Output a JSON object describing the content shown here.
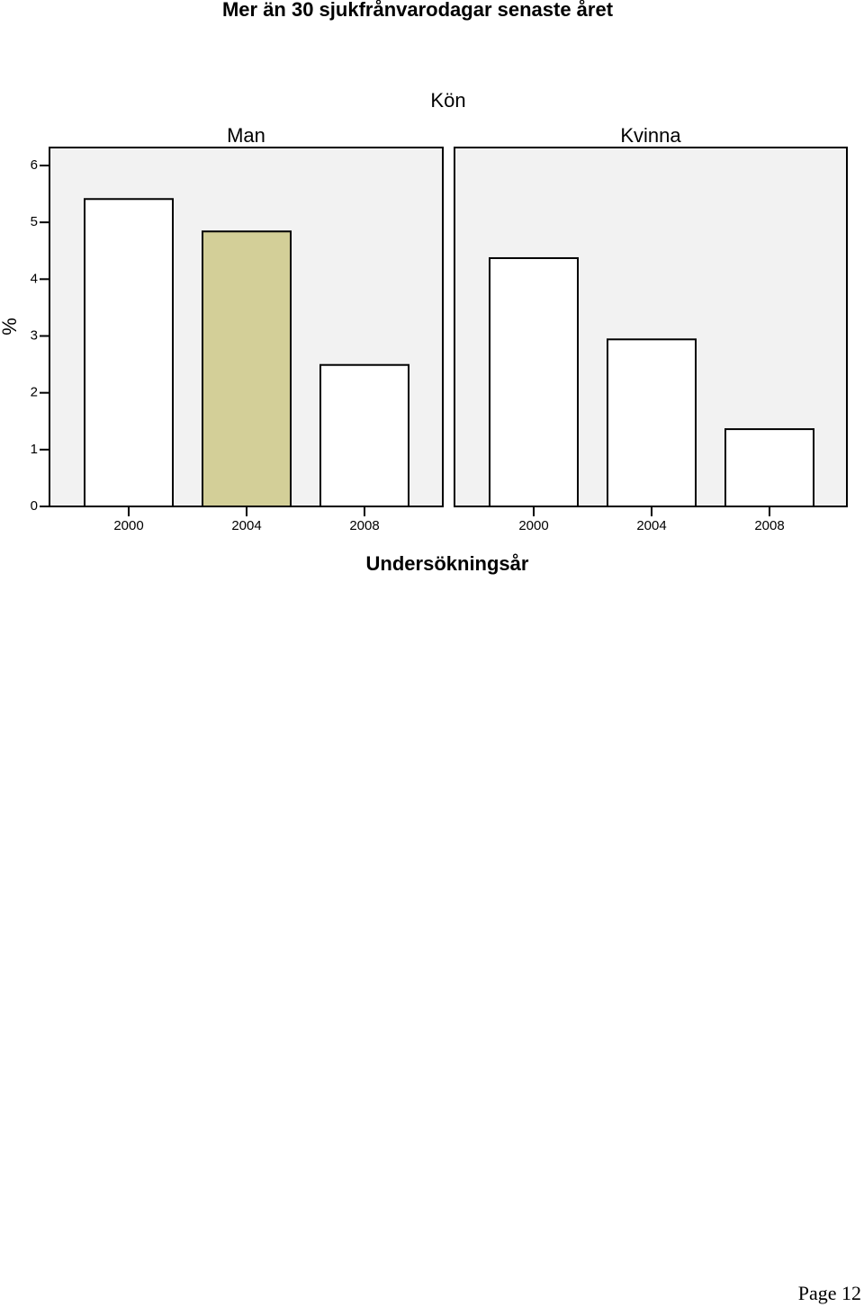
{
  "title": "Mer än 30 sjukfrånvarodagar senaste året",
  "facet_title": "Kön",
  "ylabel": "%",
  "xlabel": "Undersökningsår",
  "page": "Page 12",
  "chart_data": [
    {
      "type": "bar",
      "title": "Man",
      "categories": [
        "2000",
        "2004",
        "2008"
      ],
      "values": [
        5.41,
        4.84,
        2.49
      ],
      "colors": [
        "#ffffff",
        "#d3cf98",
        "#ffffff"
      ],
      "ylim": [
        0,
        6
      ],
      "yticks": [
        0,
        1,
        2,
        3,
        4,
        5,
        6
      ]
    },
    {
      "type": "bar",
      "title": "Kvinna",
      "categories": [
        "2000",
        "2004",
        "2008"
      ],
      "values": [
        4.37,
        2.94,
        1.36
      ],
      "colors": [
        "#ffffff",
        "#ffffff",
        "#ffffff"
      ],
      "ylim": [
        0,
        6
      ]
    }
  ]
}
